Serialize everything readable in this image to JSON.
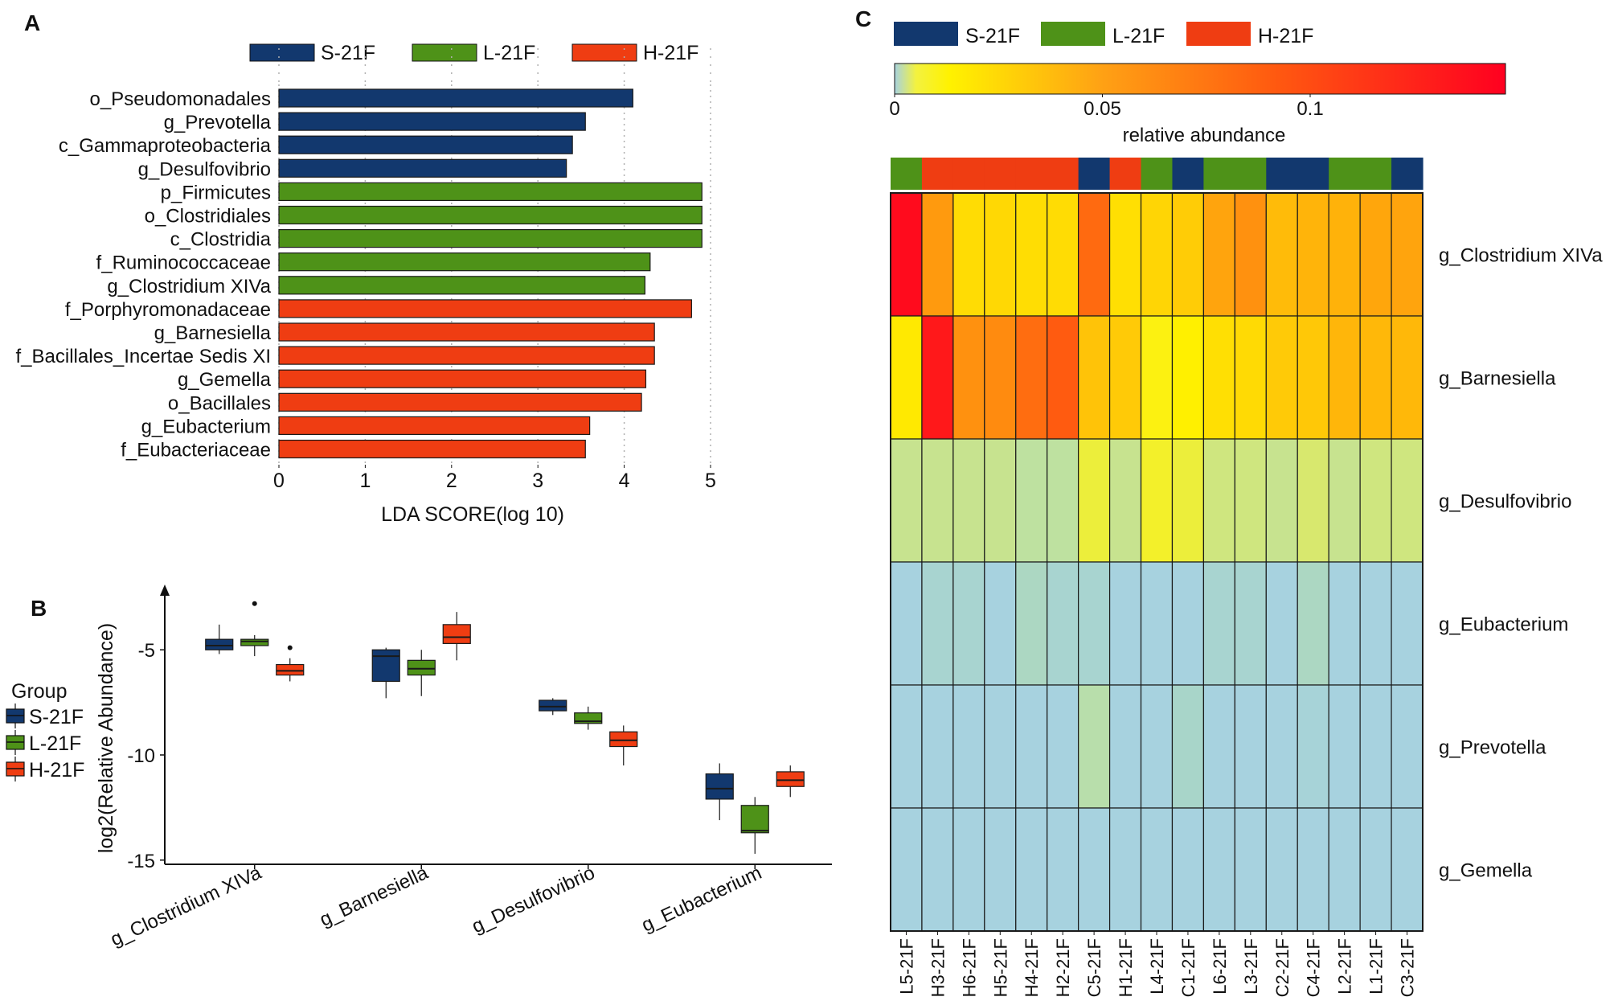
{
  "panel_labels": {
    "a": "A",
    "b": "B",
    "c": "C"
  },
  "colors": {
    "S-21F": "#12386e",
    "L-21F": "#4e9218",
    "H-21F": "#ef3d12",
    "grid": "#b0b0b0",
    "box_line": "#1a1a1a"
  },
  "chart_data": [
    {
      "id": "A",
      "type": "bar",
      "orientation": "horizontal",
      "xlabel": "LDA SCORE(log 10)",
      "xlim": [
        0,
        5
      ],
      "xticks": [
        0,
        1,
        2,
        3,
        4,
        5
      ],
      "legend": [
        "S-21F",
        "L-21F",
        "H-21F"
      ],
      "legend_position": "top",
      "bars": [
        {
          "label": "o_Pseudomonadales",
          "value": 4.1,
          "group": "S-21F"
        },
        {
          "label": "g_Prevotella",
          "value": 3.55,
          "group": "S-21F"
        },
        {
          "label": "c_Gammaproteobacteria",
          "value": 3.4,
          "group": "S-21F"
        },
        {
          "label": "g_Desulfovibrio",
          "value": 3.33,
          "group": "S-21F"
        },
        {
          "label": "p_Firmicutes",
          "value": 4.9,
          "group": "L-21F"
        },
        {
          "label": "o_Clostridiales",
          "value": 4.9,
          "group": "L-21F"
        },
        {
          "label": "c_Clostridia",
          "value": 4.9,
          "group": "L-21F"
        },
        {
          "label": "f_Ruminococcaceae",
          "value": 4.3,
          "group": "L-21F"
        },
        {
          "label": "g_Clostridium XIVa",
          "value": 4.24,
          "group": "L-21F"
        },
        {
          "label": "f_Porphyromonadaceae",
          "value": 4.78,
          "group": "H-21F"
        },
        {
          "label": "g_Barnesiella",
          "value": 4.35,
          "group": "H-21F"
        },
        {
          "label": "f_Bacillales_Incertae Sedis XI",
          "value": 4.35,
          "group": "H-21F"
        },
        {
          "label": "g_Gemella",
          "value": 4.25,
          "group": "H-21F"
        },
        {
          "label": "o_Bacillales",
          "value": 4.2,
          "group": "H-21F"
        },
        {
          "label": "g_Eubacterium",
          "value": 3.6,
          "group": "H-21F"
        },
        {
          "label": "f_Eubacteriaceae",
          "value": 3.55,
          "group": "H-21F"
        }
      ]
    },
    {
      "id": "B",
      "type": "box",
      "ylabel": "log2(Relative Abundance)",
      "ylim": [
        -15.2,
        -2.2
      ],
      "yticks": [
        -5,
        -10,
        -15
      ],
      "legend_title": "Group",
      "legend": [
        "S-21F",
        "L-21F",
        "H-21F"
      ],
      "legend_position": "left",
      "categories": [
        "g_Clostridium XIVa",
        "g_Barnesiella",
        "g_Desulfovibrio",
        "g_Eubacterium"
      ],
      "series": [
        {
          "name": "S-21F",
          "boxes": [
            {
              "min": -5.2,
              "q1": -5.0,
              "median": -4.8,
              "q3": -4.5,
              "max": -3.8,
              "outliers": []
            },
            {
              "min": -7.3,
              "q1": -6.5,
              "median": -5.3,
              "q3": -5.0,
              "max": -4.9,
              "outliers": []
            },
            {
              "min": -8.1,
              "q1": -7.9,
              "median": -7.7,
              "q3": -7.4,
              "max": -7.3,
              "outliers": []
            },
            {
              "min": -13.1,
              "q1": -12.1,
              "median": -11.6,
              "q3": -10.9,
              "max": -10.4,
              "outliers": []
            }
          ]
        },
        {
          "name": "L-21F",
          "boxes": [
            {
              "min": -5.3,
              "q1": -4.8,
              "median": -4.6,
              "q3": -4.5,
              "max": -4.3,
              "outliers": [
                -2.8
              ]
            },
            {
              "min": -7.2,
              "q1": -6.2,
              "median": -5.9,
              "q3": -5.5,
              "max": -5.0,
              "outliers": []
            },
            {
              "min": -8.8,
              "q1": -8.5,
              "median": -8.4,
              "q3": -8.0,
              "max": -7.7,
              "outliers": []
            },
            {
              "min": -14.7,
              "q1": -13.7,
              "median": -13.6,
              "q3": -12.4,
              "max": -12.0,
              "outliers": []
            }
          ]
        },
        {
          "name": "H-21F",
          "boxes": [
            {
              "min": -6.5,
              "q1": -6.2,
              "median": -6.0,
              "q3": -5.7,
              "max": -5.4,
              "outliers": [
                -4.9
              ]
            },
            {
              "min": -5.5,
              "q1": -4.7,
              "median": -4.4,
              "q3": -3.8,
              "max": -3.2,
              "outliers": []
            },
            {
              "min": -10.5,
              "q1": -9.6,
              "median": -9.3,
              "q3": -8.9,
              "max": -8.6,
              "outliers": []
            },
            {
              "min": -12.0,
              "q1": -11.5,
              "median": -11.2,
              "q3": -10.8,
              "max": -10.5,
              "outliers": []
            }
          ]
        }
      ]
    },
    {
      "id": "C",
      "type": "heatmap",
      "colorbar_label": "relative abundance",
      "colorbar_ticks": [
        0,
        0.05,
        0.1
      ],
      "colorbar_range": [
        0,
        0.147
      ],
      "legend": [
        "S-21F",
        "L-21F",
        "H-21F"
      ],
      "legend_position": "top",
      "columns": [
        "L5-21F",
        "H3-21F",
        "H6-21F",
        "H5-21F",
        "H4-21F",
        "H2-21F",
        "C5-21F",
        "H1-21F",
        "L4-21F",
        "C1-21F",
        "L6-21F",
        "L3-21F",
        "C2-21F",
        "C4-21F",
        "L2-21F",
        "L1-21F",
        "C3-21F"
      ],
      "column_groups": [
        "L-21F",
        "H-21F",
        "H-21F",
        "H-21F",
        "H-21F",
        "H-21F",
        "S-21F",
        "H-21F",
        "L-21F",
        "S-21F",
        "L-21F",
        "L-21F",
        "S-21F",
        "S-21F",
        "L-21F",
        "L-21F",
        "S-21F"
      ],
      "rows": [
        "g_Clostridium XIVa",
        "g_Barnesiella",
        "g_Desulfovibrio",
        "g_Eubacterium",
        "g_Prevotella",
        "g_Gemella"
      ],
      "values": [
        [
          0.142,
          0.058,
          0.026,
          0.028,
          0.025,
          0.026,
          0.076,
          0.024,
          0.03,
          0.034,
          0.053,
          0.062,
          0.042,
          0.045,
          0.046,
          0.052,
          0.053
        ],
        [
          0.018,
          0.132,
          0.062,
          0.064,
          0.075,
          0.083,
          0.038,
          0.035,
          0.012,
          0.014,
          0.024,
          0.027,
          0.035,
          0.036,
          0.044,
          0.043,
          0.043
        ],
        [
          0.004,
          0.004,
          0.004,
          0.004,
          0.003,
          0.003,
          0.009,
          0.004,
          0.01,
          0.009,
          0.005,
          0.005,
          0.004,
          0.006,
          0.004,
          0.005,
          0.005
        ],
        [
          0.0005,
          0.001,
          0.001,
          0.0006,
          0.0015,
          0.001,
          0.001,
          0.0005,
          0.0005,
          0.0005,
          0.001,
          0.001,
          0.0005,
          0.0015,
          0.0005,
          0.0005,
          0.0005
        ],
        [
          0.0003,
          0.0004,
          0.0005,
          0.0003,
          0.0003,
          0.0003,
          0.0025,
          0.0003,
          0.0003,
          0.0012,
          0.0003,
          0.0003,
          0.0003,
          0.0008,
          0.0003,
          0.0003,
          0.0003
        ],
        [
          0.0002,
          0.0003,
          0.0002,
          0.0005,
          0.0003,
          0.0002,
          0.0002,
          0.0002,
          0.0002,
          0.0002,
          0.0002,
          0.0002,
          0.0002,
          0.0002,
          0.0002,
          0.0002,
          0.0002
        ]
      ]
    }
  ]
}
